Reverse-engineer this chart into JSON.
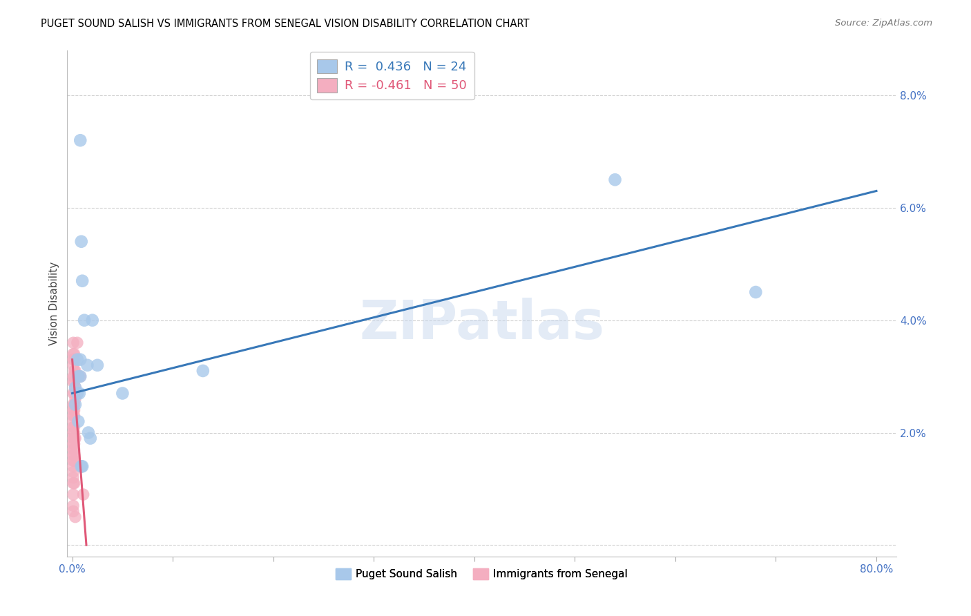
{
  "title": "PUGET SOUND SALISH VS IMMIGRANTS FROM SENEGAL VISION DISABILITY CORRELATION CHART",
  "source": "Source: ZipAtlas.com",
  "ylabel": "Vision Disability",
  "xlim": [
    -0.005,
    0.82
  ],
  "ylim": [
    -0.002,
    0.088
  ],
  "xticks": [
    0.0,
    0.1,
    0.2,
    0.3,
    0.4,
    0.5,
    0.6,
    0.7,
    0.8
  ],
  "yticks": [
    0.0,
    0.02,
    0.04,
    0.06,
    0.08
  ],
  "yticklabels": [
    "",
    "2.0%",
    "4.0%",
    "6.0%",
    "8.0%"
  ],
  "legend_label1": "Puget Sound Salish",
  "legend_label2": "Immigrants from Senegal",
  "blue_color": "#a8c8ea",
  "pink_color": "#f4aec0",
  "blue_line_color": "#3878b8",
  "pink_line_color": "#e05878",
  "tick_label_color": "#4472c4",
  "watermark": "ZIPatlas",
  "blue_dots": [
    [
      0.008,
      0.072
    ],
    [
      0.009,
      0.054
    ],
    [
      0.01,
      0.047
    ],
    [
      0.012,
      0.04
    ],
    [
      0.02,
      0.04
    ],
    [
      0.005,
      0.033
    ],
    [
      0.008,
      0.033
    ],
    [
      0.015,
      0.032
    ],
    [
      0.025,
      0.032
    ],
    [
      0.006,
      0.03
    ],
    [
      0.008,
      0.03
    ],
    [
      0.003,
      0.028
    ],
    [
      0.005,
      0.027
    ],
    [
      0.007,
      0.027
    ],
    [
      0.05,
      0.027
    ],
    [
      0.003,
      0.025
    ],
    [
      0.006,
      0.022
    ],
    [
      0.016,
      0.02
    ],
    [
      0.018,
      0.019
    ],
    [
      0.009,
      0.014
    ],
    [
      0.01,
      0.014
    ],
    [
      0.54,
      0.065
    ],
    [
      0.68,
      0.045
    ],
    [
      0.13,
      0.031
    ]
  ],
  "pink_dots": [
    [
      0.001,
      0.036
    ],
    [
      0.001,
      0.034
    ],
    [
      0.002,
      0.034
    ],
    [
      0.001,
      0.033
    ],
    [
      0.002,
      0.033
    ],
    [
      0.001,
      0.032
    ],
    [
      0.002,
      0.031
    ],
    [
      0.003,
      0.031
    ],
    [
      0.001,
      0.03
    ],
    [
      0.002,
      0.03
    ],
    [
      0.001,
      0.029
    ],
    [
      0.002,
      0.029
    ],
    [
      0.003,
      0.028
    ],
    [
      0.001,
      0.027
    ],
    [
      0.002,
      0.027
    ],
    [
      0.003,
      0.026
    ],
    [
      0.001,
      0.025
    ],
    [
      0.002,
      0.025
    ],
    [
      0.001,
      0.024
    ],
    [
      0.002,
      0.024
    ],
    [
      0.001,
      0.023
    ],
    [
      0.002,
      0.023
    ],
    [
      0.001,
      0.022
    ],
    [
      0.001,
      0.021
    ],
    [
      0.002,
      0.021
    ],
    [
      0.001,
      0.02
    ],
    [
      0.002,
      0.02
    ],
    [
      0.001,
      0.019
    ],
    [
      0.002,
      0.019
    ],
    [
      0.003,
      0.019
    ],
    [
      0.001,
      0.018
    ],
    [
      0.002,
      0.018
    ],
    [
      0.001,
      0.017
    ],
    [
      0.002,
      0.017
    ],
    [
      0.001,
      0.016
    ],
    [
      0.002,
      0.016
    ],
    [
      0.001,
      0.015
    ],
    [
      0.002,
      0.015
    ],
    [
      0.001,
      0.014
    ],
    [
      0.001,
      0.013
    ],
    [
      0.001,
      0.012
    ],
    [
      0.001,
      0.011
    ],
    [
      0.002,
      0.011
    ],
    [
      0.001,
      0.009
    ],
    [
      0.001,
      0.007
    ],
    [
      0.001,
      0.006
    ],
    [
      0.005,
      0.036
    ],
    [
      0.008,
      0.03
    ],
    [
      0.011,
      0.009
    ],
    [
      0.003,
      0.005
    ]
  ],
  "blue_trend_x": [
    0.0,
    0.8
  ],
  "blue_trend_y": [
    0.027,
    0.063
  ],
  "pink_trend_x": [
    0.0,
    0.014
  ],
  "pink_trend_y": [
    0.033,
    0.0
  ]
}
